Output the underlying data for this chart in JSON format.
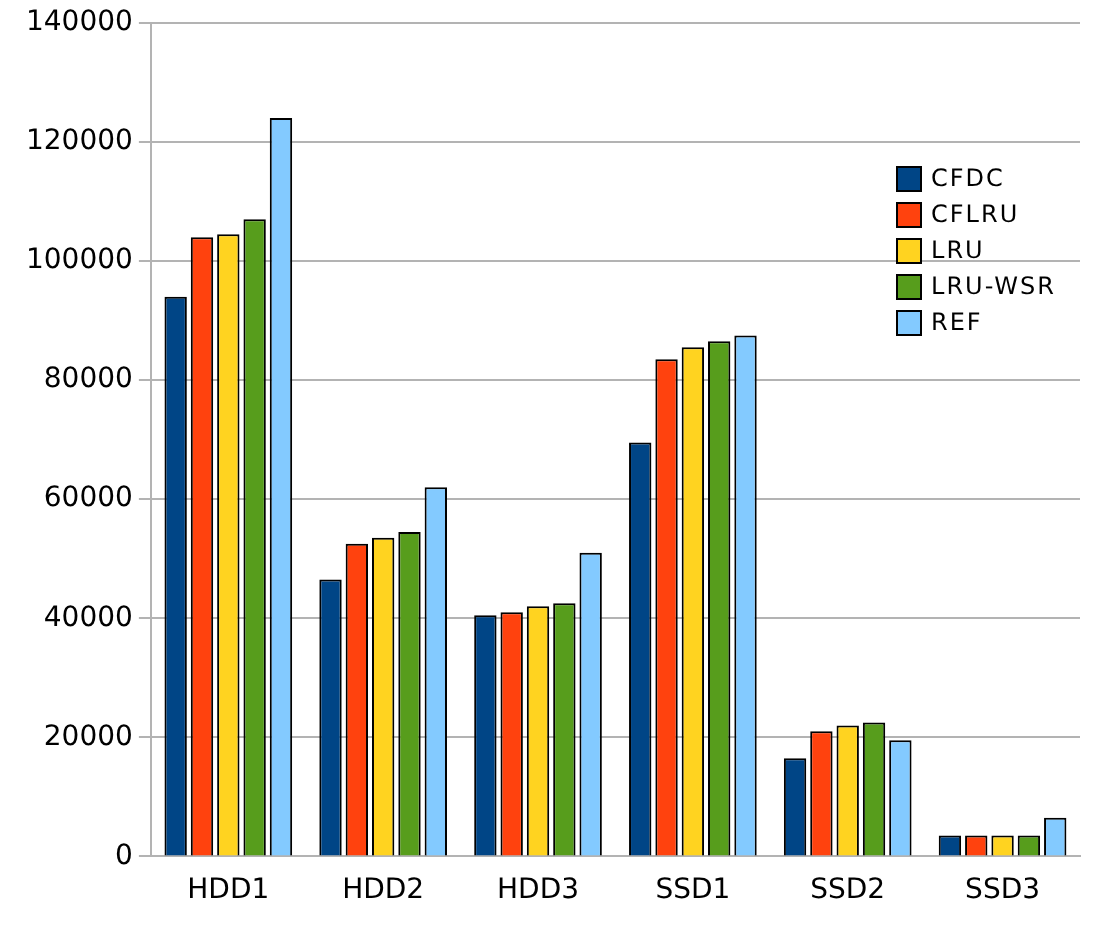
{
  "chart_data": {
    "type": "bar",
    "categories": [
      "HDD1",
      "HDD2",
      "HDD3",
      "SSD1",
      "SSD2",
      "SSD3"
    ],
    "series": [
      {
        "name": "CFDC",
        "color": "#004586",
        "values": [
          94000,
          46500,
          40500,
          69500,
          16500,
          3500
        ]
      },
      {
        "name": "CFLRU",
        "color": "#ff420e",
        "values": [
          104000,
          52500,
          41000,
          83500,
          21000,
          3500
        ]
      },
      {
        "name": "LRU",
        "color": "#ffd320",
        "values": [
          104500,
          53500,
          42000,
          85500,
          22000,
          3500
        ]
      },
      {
        "name": "LRU-WSR",
        "color": "#579d1c",
        "values": [
          107000,
          54500,
          42500,
          86500,
          22500,
          3500
        ]
      },
      {
        "name": "REF",
        "color": "#83caff",
        "values": [
          124000,
          62000,
          51000,
          87500,
          19500,
          6500
        ]
      }
    ],
    "ylim": [
      0,
      140000
    ],
    "yticks": [
      0,
      20000,
      40000,
      60000,
      80000,
      100000,
      120000,
      140000
    ],
    "grid": "y",
    "legend": "top right"
  }
}
